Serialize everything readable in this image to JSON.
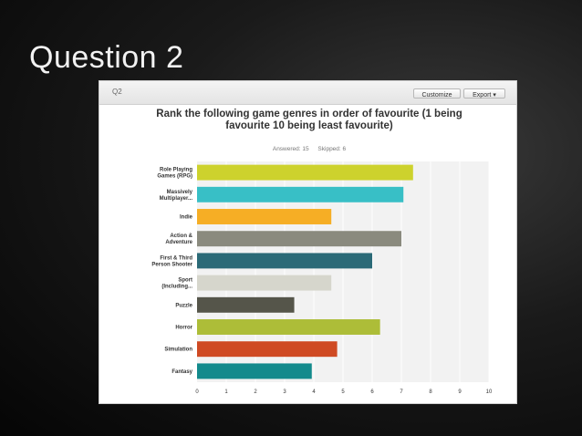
{
  "slide": {
    "title": "Question 2"
  },
  "panel": {
    "question_label": "Q2",
    "customize_label": "Customize",
    "export_label": "Export ▾",
    "answered_text": "Answered: 15",
    "skipped_text": "Skipped: 6"
  },
  "chart_data": {
    "type": "bar",
    "orientation": "horizontal",
    "title": "Rank the following game genres in order of favourite (1 being favourite 10 being least favourite)",
    "categories": [
      [
        "Role Playing",
        "Games (RPG)"
      ],
      [
        "Massively",
        "Multiplayer..."
      ],
      [
        "Indie"
      ],
      [
        "Action &",
        "Adventure"
      ],
      [
        "First & Third",
        "Person Shooter"
      ],
      [
        "Sport",
        "(Including..."
      ],
      [
        "Puzzle"
      ],
      [
        "Horror"
      ],
      [
        "Simulation"
      ],
      [
        "Fantasy"
      ]
    ],
    "values": [
      7.4,
      7.07,
      4.6,
      7.0,
      6.0,
      4.6,
      3.33,
      6.27,
      4.8,
      3.93
    ],
    "colors": [
      "#cdd22d",
      "#38bfc6",
      "#f6ae25",
      "#8a8a7e",
      "#2b6a77",
      "#d6d6cc",
      "#55554a",
      "#adbd38",
      "#cf4a23",
      "#138a8c"
    ],
    "xlim": [
      0,
      10
    ],
    "xticks": [
      0,
      1,
      2,
      3,
      4,
      5,
      6,
      7,
      8,
      9,
      10
    ],
    "grid": true,
    "legend": "none"
  }
}
